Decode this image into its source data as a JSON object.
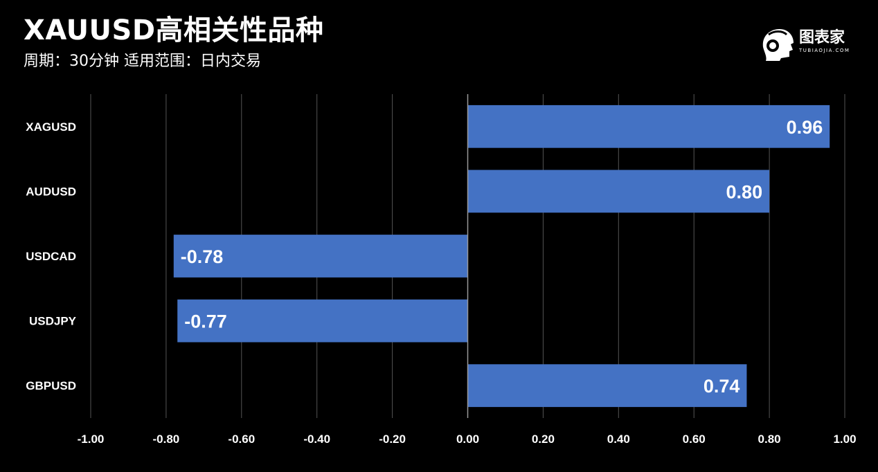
{
  "header": {
    "title": "XAUUSD高相关性品种",
    "subtitle": "周期：30分钟  适用范围：日内交易"
  },
  "logo": {
    "text": "图表家",
    "subtext": "TUBIAOJIA.COM"
  },
  "colors": {
    "background": "#000000",
    "bar": "#4472c4",
    "grid": "#555555",
    "zero_axis": "#9a9a9a",
    "text": "#ffffff"
  },
  "chart_data": {
    "type": "bar",
    "orientation": "horizontal",
    "categories": [
      "XAGUSD",
      "AUDUSD",
      "USDCAD",
      "USDJPY",
      "GBPUSD"
    ],
    "values": [
      0.96,
      0.8,
      -0.78,
      -0.77,
      0.74
    ],
    "value_labels": [
      "0.96",
      "0.80",
      "-0.78",
      "-0.77",
      "0.74"
    ],
    "xlim": [
      -1.0,
      1.0
    ],
    "x_ticks": [
      -1.0,
      -0.8,
      -0.6,
      -0.4,
      -0.2,
      0.0,
      0.2,
      0.4,
      0.6,
      0.8,
      1.0
    ],
    "x_tick_labels": [
      "-1.00",
      "-0.80",
      "-0.60",
      "-0.40",
      "-0.20",
      "0.00",
      "0.20",
      "0.40",
      "0.60",
      "0.80",
      "1.00"
    ],
    "grid": true,
    "legend": "none"
  }
}
